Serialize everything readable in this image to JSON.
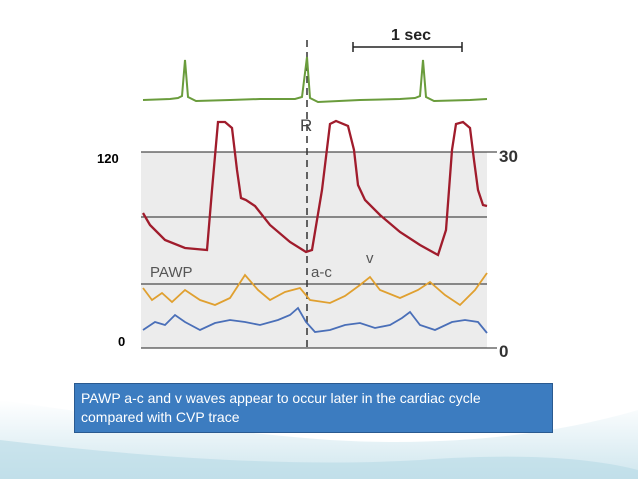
{
  "scale_bar": "1 sec",
  "labels": {
    "r": "R",
    "left_top": "120",
    "right_top": "30",
    "pawp": "PAWP",
    "ac": "a-c",
    "v": "v",
    "left_bottom": "0",
    "right_bottom": "0"
  },
  "caption": "PAWP a-c and v waves appear to occur later in the cardiac cycle compared with CVP trace"
}
